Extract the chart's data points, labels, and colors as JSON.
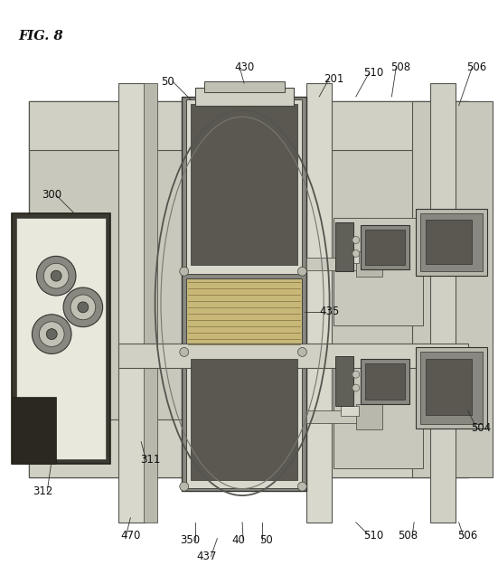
{
  "title": "FIG. 8",
  "bg_color": "#ffffff",
  "fig_width": 5.51,
  "fig_height": 6.46,
  "stipple_color": "#c8c8bc",
  "dark_module_color": "#6a6a60",
  "very_dark": "#2a2820",
  "light_bg": "#e8e8dc",
  "mid_gray": "#a8a89c",
  "stripe_color": "#b8a870"
}
